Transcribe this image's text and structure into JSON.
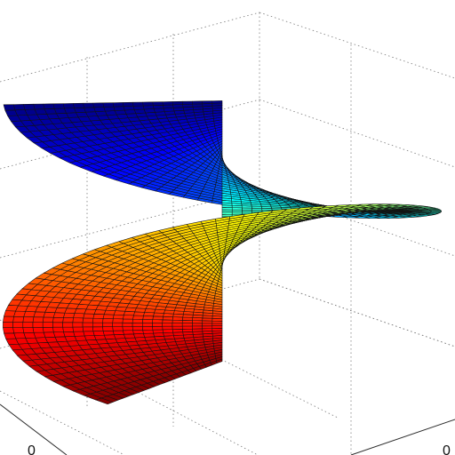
{
  "chart_data": {
    "type": "surface",
    "surface": "helicoid",
    "colormap": "jet",
    "grid": true,
    "x_ticks": [
      "0"
    ],
    "y_ticks": [
      "0"
    ],
    "r_range": [
      0,
      1
    ],
    "theta_turns": 1.15,
    "pitch": 1.0
  }
}
